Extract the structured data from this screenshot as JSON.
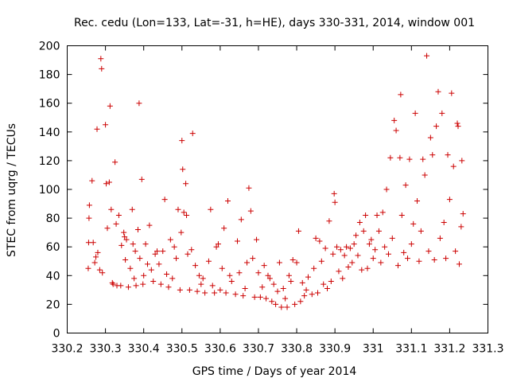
{
  "chart_data": {
    "type": "scatter",
    "title": "Rec. cedu (Lon=133, Lat=-31, h=HE), days 330-331, 2014, window 001",
    "xlabel": "GPS time / Days of year 2014",
    "ylabel": "STEC from uqrg / TECUs",
    "xlim": [
      330.2,
      331.3
    ],
    "ylim": [
      0,
      200
    ],
    "xticks": [
      "330.2",
      "330.3",
      "330.4",
      "330.5",
      "330.6",
      "330.7",
      "330.8",
      "330.9",
      "331",
      "331.1",
      "331.2",
      "331.3"
    ],
    "yticks": [
      "0",
      "20",
      "40",
      "60",
      "80",
      "100",
      "120",
      "140",
      "160",
      "180",
      "200"
    ],
    "grid": false,
    "marker": "+",
    "marker_color": "#cc0000",
    "series": [
      {
        "points": [
          [
            330.255,
            45
          ],
          [
            330.256,
            63
          ],
          [
            330.257,
            80
          ],
          [
            330.258,
            89
          ],
          [
            330.265,
            106
          ],
          [
            330.268,
            63
          ],
          [
            330.272,
            49
          ],
          [
            330.275,
            53
          ],
          [
            330.278,
            142
          ],
          [
            330.28,
            56
          ],
          [
            330.285,
            44
          ],
          [
            330.288,
            191
          ],
          [
            330.29,
            184
          ],
          [
            330.292,
            42
          ],
          [
            330.3,
            145
          ],
          [
            330.302,
            104
          ],
          [
            330.305,
            73
          ],
          [
            330.31,
            105
          ],
          [
            330.312,
            158
          ],
          [
            330.315,
            86
          ],
          [
            330.318,
            35
          ],
          [
            330.32,
            34
          ],
          [
            330.325,
            119
          ],
          [
            330.328,
            76
          ],
          [
            330.33,
            33
          ],
          [
            330.335,
            82
          ],
          [
            330.34,
            33
          ],
          [
            330.342,
            61
          ],
          [
            330.348,
            70
          ],
          [
            330.35,
            67
          ],
          [
            330.352,
            51
          ],
          [
            330.355,
            65
          ],
          [
            330.36,
            32
          ],
          [
            330.365,
            45
          ],
          [
            330.37,
            86
          ],
          [
            330.372,
            62
          ],
          [
            330.375,
            38
          ],
          [
            330.378,
            57
          ],
          [
            330.38,
            33
          ],
          [
            330.385,
            72
          ],
          [
            330.388,
            160
          ],
          [
            330.39,
            52
          ],
          [
            330.395,
            107
          ],
          [
            330.398,
            34
          ],
          [
            330.4,
            40
          ],
          [
            330.405,
            62
          ],
          [
            330.41,
            48
          ],
          [
            330.415,
            75
          ],
          [
            330.42,
            44
          ],
          [
            330.425,
            36
          ],
          [
            330.43,
            55
          ],
          [
            330.435,
            57
          ],
          [
            330.44,
            48
          ],
          [
            330.445,
            34
          ],
          [
            330.45,
            57
          ],
          [
            330.455,
            93
          ],
          [
            330.46,
            41
          ],
          [
            330.465,
            32
          ],
          [
            330.47,
            65
          ],
          [
            330.475,
            38
          ],
          [
            330.48,
            60
          ],
          [
            330.485,
            52
          ],
          [
            330.49,
            86
          ],
          [
            330.495,
            30
          ],
          [
            330.498,
            70
          ],
          [
            330.5,
            134
          ],
          [
            330.502,
            114
          ],
          [
            330.505,
            84
          ],
          [
            330.51,
            104
          ],
          [
            330.512,
            82
          ],
          [
            330.515,
            55
          ],
          [
            330.52,
            30
          ],
          [
            330.525,
            58
          ],
          [
            330.528,
            139
          ],
          [
            330.535,
            47
          ],
          [
            330.54,
            29
          ],
          [
            330.545,
            40
          ],
          [
            330.55,
            34
          ],
          [
            330.555,
            38
          ],
          [
            330.56,
            28
          ],
          [
            330.57,
            50
          ],
          [
            330.575,
            86
          ],
          [
            330.58,
            33
          ],
          [
            330.585,
            28
          ],
          [
            330.59,
            60
          ],
          [
            330.595,
            62
          ],
          [
            330.6,
            30
          ],
          [
            330.605,
            45
          ],
          [
            330.61,
            73
          ],
          [
            330.615,
            28
          ],
          [
            330.62,
            92
          ],
          [
            330.625,
            40
          ],
          [
            330.63,
            36
          ],
          [
            330.64,
            27
          ],
          [
            330.645,
            64
          ],
          [
            330.65,
            42
          ],
          [
            330.655,
            79
          ],
          [
            330.66,
            26
          ],
          [
            330.665,
            31
          ],
          [
            330.67,
            49
          ],
          [
            330.675,
            101
          ],
          [
            330.68,
            85
          ],
          [
            330.685,
            52
          ],
          [
            330.69,
            25
          ],
          [
            330.695,
            65
          ],
          [
            330.7,
            42
          ],
          [
            330.705,
            25
          ],
          [
            330.71,
            32
          ],
          [
            330.715,
            47
          ],
          [
            330.72,
            24
          ],
          [
            330.725,
            40
          ],
          [
            330.73,
            38
          ],
          [
            330.735,
            22
          ],
          [
            330.74,
            34
          ],
          [
            330.745,
            20
          ],
          [
            330.75,
            29
          ],
          [
            330.755,
            49
          ],
          [
            330.76,
            18
          ],
          [
            330.765,
            31
          ],
          [
            330.77,
            24
          ],
          [
            330.775,
            18
          ],
          [
            330.78,
            40
          ],
          [
            330.785,
            36
          ],
          [
            330.79,
            51
          ],
          [
            330.795,
            20
          ],
          [
            330.8,
            49
          ],
          [
            330.805,
            71
          ],
          [
            330.81,
            22
          ],
          [
            330.815,
            35
          ],
          [
            330.82,
            26
          ],
          [
            330.825,
            30
          ],
          [
            330.83,
            39
          ],
          [
            330.84,
            27
          ],
          [
            330.845,
            45
          ],
          [
            330.85,
            66
          ],
          [
            330.855,
            28
          ],
          [
            330.86,
            64
          ],
          [
            330.865,
            50
          ],
          [
            330.87,
            34
          ],
          [
            330.875,
            59
          ],
          [
            330.88,
            31
          ],
          [
            330.885,
            78
          ],
          [
            330.89,
            36
          ],
          [
            330.895,
            55
          ],
          [
            330.898,
            97
          ],
          [
            330.9,
            91
          ],
          [
            330.905,
            60
          ],
          [
            330.91,
            43
          ],
          [
            330.915,
            58
          ],
          [
            330.92,
            38
          ],
          [
            330.925,
            54
          ],
          [
            330.93,
            60
          ],
          [
            330.935,
            46
          ],
          [
            330.94,
            59
          ],
          [
            330.945,
            49
          ],
          [
            330.95,
            62
          ],
          [
            330.955,
            68
          ],
          [
            330.96,
            54
          ],
          [
            330.965,
            77
          ],
          [
            330.97,
            44
          ],
          [
            330.975,
            71
          ],
          [
            330.98,
            82
          ],
          [
            330.985,
            45
          ],
          [
            330.99,
            62
          ],
          [
            330.995,
            65
          ],
          [
            331.0,
            52
          ],
          [
            331.005,
            58
          ],
          [
            331.01,
            82
          ],
          [
            331.015,
            71
          ],
          [
            331.02,
            49
          ],
          [
            331.025,
            84
          ],
          [
            331.03,
            60
          ],
          [
            331.035,
            100
          ],
          [
            331.04,
            55
          ],
          [
            331.045,
            122
          ],
          [
            331.05,
            66
          ],
          [
            331.055,
            148
          ],
          [
            331.06,
            141
          ],
          [
            331.065,
            47
          ],
          [
            331.07,
            122
          ],
          [
            331.072,
            166
          ],
          [
            331.075,
            82
          ],
          [
            331.08,
            56
          ],
          [
            331.085,
            103
          ],
          [
            331.09,
            52
          ],
          [
            331.095,
            121
          ],
          [
            331.1,
            62
          ],
          [
            331.105,
            76
          ],
          [
            331.11,
            153
          ],
          [
            331.115,
            92
          ],
          [
            331.12,
            50
          ],
          [
            331.125,
            71
          ],
          [
            331.13,
            121
          ],
          [
            331.135,
            110
          ],
          [
            331.14,
            193
          ],
          [
            331.145,
            57
          ],
          [
            331.15,
            136
          ],
          [
            331.155,
            124
          ],
          [
            331.16,
            51
          ],
          [
            331.165,
            144
          ],
          [
            331.17,
            168
          ],
          [
            331.175,
            66
          ],
          [
            331.18,
            153
          ],
          [
            331.185,
            77
          ],
          [
            331.19,
            52
          ],
          [
            331.195,
            124
          ],
          [
            331.2,
            93
          ],
          [
            331.205,
            167
          ],
          [
            331.21,
            116
          ],
          [
            331.215,
            57
          ],
          [
            331.22,
            146
          ],
          [
            331.222,
            144
          ],
          [
            331.225,
            48
          ],
          [
            331.23,
            74
          ],
          [
            331.232,
            120
          ],
          [
            331.235,
            83
          ]
        ]
      }
    ]
  }
}
